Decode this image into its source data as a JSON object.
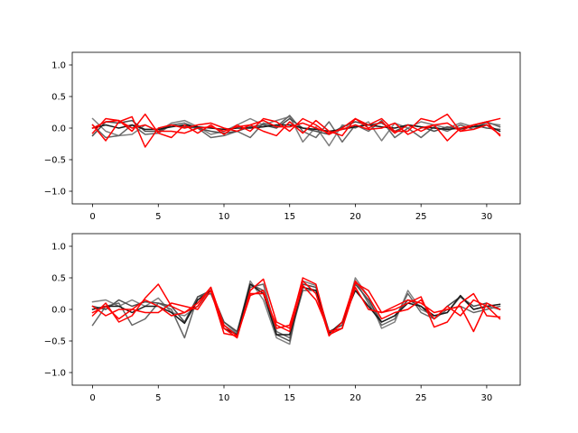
{
  "chart_data": [
    {
      "type": "line",
      "title": "",
      "xlabel": "",
      "ylabel": "",
      "xlim": [
        -1.55,
        32.55
      ],
      "ylim": [
        -1.2,
        1.2
      ],
      "xticks": [
        0,
        5,
        10,
        15,
        20,
        25,
        30
      ],
      "yticks": [
        -1.0,
        -0.5,
        0.0,
        0.5,
        1.0
      ],
      "xtick_labels": [
        "0",
        "5",
        "10",
        "15",
        "20",
        "25",
        "30"
      ],
      "ytick_labels": [
        "−1.0",
        "−0.5",
        "0.0",
        "0.5",
        "1.0"
      ],
      "grid": false,
      "legend": false,
      "x": [
        0,
        1,
        2,
        3,
        4,
        5,
        6,
        7,
        8,
        9,
        10,
        11,
        12,
        13,
        14,
        15,
        16,
        17,
        18,
        19,
        20,
        21,
        22,
        23,
        24,
        25,
        26,
        27,
        28,
        29,
        30,
        31
      ],
      "series": [
        {
          "color": "#7f7f7f",
          "values": [
            0.15,
            -0.05,
            -0.12,
            -0.1,
            0.05,
            -0.05,
            0.08,
            0.12,
            0.02,
            -0.1,
            -0.05,
            0.05,
            0.15,
            0.05,
            0.12,
            0.18,
            -0.22,
            0.02,
            -0.28,
            0.05,
            0.0,
            0.1,
            -0.2,
            0.08,
            0.0,
            0.1,
            0.05,
            0.0,
            0.08,
            0.02,
            0.08,
            0.05
          ]
        },
        {
          "color": "#666666",
          "values": [
            0.05,
            -0.15,
            -0.12,
            0.05,
            -0.1,
            -0.08,
            0.05,
            0.08,
            0.0,
            -0.15,
            -0.12,
            -0.05,
            -0.15,
            0.08,
            0.02,
            0.2,
            -0.05,
            -0.15,
            0.1,
            -0.22,
            0.05,
            -0.05,
            0.12,
            -0.15,
            0.0,
            -0.15,
            0.02,
            -0.05,
            0.05,
            -0.02,
            0.1,
            0.02
          ]
        },
        {
          "color": "#4d4d4d",
          "values": [
            -0.12,
            0.1,
            0.08,
            0.12,
            -0.05,
            -0.05,
            0.05,
            0.02,
            0.0,
            -0.05,
            -0.08,
            -0.05,
            0.02,
            0.05,
            0.0,
            0.15,
            0.0,
            -0.05,
            -0.1,
            0.02,
            0.1,
            0.05,
            0.08,
            -0.05,
            0.05,
            0.02,
            -0.05,
            0.02,
            -0.02,
            0.05,
            0.0,
            -0.02
          ]
        },
        {
          "color": "#1a1a1a",
          "values": [
            0.0,
            0.05,
            0.0,
            0.05,
            -0.02,
            -0.02,
            0.02,
            0.05,
            0.02,
            0.0,
            -0.02,
            0.0,
            0.0,
            0.02,
            0.05,
            0.05,
            0.0,
            -0.02,
            -0.05,
            -0.02,
            0.02,
            0.05,
            0.02,
            0.0,
            0.05,
            0.02,
            0.0,
            -0.02,
            0.0,
            0.02,
            0.05,
            -0.05
          ]
        },
        {
          "color": "#ff0000",
          "values": [
            -0.08,
            0.15,
            0.12,
            -0.05,
            0.22,
            -0.08,
            -0.15,
            0.05,
            -0.08,
            0.05,
            -0.1,
            0.05,
            -0.05,
            0.15,
            0.1,
            -0.05,
            0.15,
            0.05,
            -0.1,
            0.0,
            0.15,
            0.05,
            0.15,
            -0.05,
            -0.05,
            0.15,
            0.1,
            0.22,
            -0.05,
            0.05,
            0.1,
            0.15
          ]
        },
        {
          "color": "#ff0000",
          "values": [
            0.05,
            -0.2,
            0.1,
            0.18,
            -0.3,
            0.0,
            0.05,
            0.0,
            0.05,
            0.08,
            0.0,
            -0.05,
            0.05,
            -0.05,
            -0.12,
            0.1,
            -0.08,
            0.12,
            -0.05,
            -0.12,
            0.15,
            0.0,
            0.1,
            -0.08,
            0.05,
            -0.05,
            0.05,
            -0.2,
            0.0,
            0.05,
            0.1,
            -0.12
          ]
        },
        {
          "color": "#ff0000",
          "values": [
            0.0,
            0.1,
            0.12,
            0.0,
            0.05,
            -0.05,
            -0.05,
            -0.08,
            0.0,
            0.02,
            -0.05,
            0.02,
            0.05,
            0.12,
            0.02,
            0.02,
            0.08,
            0.0,
            -0.08,
            -0.02,
            0.05,
            -0.02,
            0.0,
            0.08,
            -0.1,
            0.0,
            0.05,
            0.08,
            -0.05,
            -0.02,
            0.05,
            -0.1
          ]
        }
      ]
    },
    {
      "type": "line",
      "title": "",
      "xlabel": "",
      "ylabel": "",
      "xlim": [
        -1.55,
        32.55
      ],
      "ylim": [
        -1.2,
        1.2
      ],
      "xticks": [
        0,
        5,
        10,
        15,
        20,
        25,
        30
      ],
      "yticks": [
        -1.0,
        -0.5,
        0.0,
        0.5,
        1.0
      ],
      "xtick_labels": [
        "0",
        "5",
        "10",
        "15",
        "20",
        "25",
        "30"
      ],
      "ytick_labels": [
        "−1.0",
        "−0.5",
        "0.0",
        "0.5",
        "1.0"
      ],
      "grid": false,
      "legend": false,
      "x": [
        0,
        1,
        2,
        3,
        4,
        5,
        6,
        7,
        8,
        9,
        10,
        11,
        12,
        13,
        14,
        15,
        16,
        17,
        18,
        19,
        20,
        21,
        22,
        23,
        24,
        25,
        26,
        27,
        28,
        29,
        30,
        31
      ],
      "series": [
        {
          "color": "#7f7f7f",
          "values": [
            0.12,
            0.15,
            0.05,
            0.15,
            0.05,
            0.18,
            -0.05,
            -0.1,
            0.05,
            0.3,
            -0.2,
            -0.38,
            0.45,
            0.15,
            -0.45,
            -0.55,
            0.45,
            0.38,
            -0.4,
            -0.3,
            0.5,
            0.2,
            -0.3,
            -0.2,
            0.3,
            0.0,
            -0.1,
            -0.05,
            0.2,
            0.0,
            0.05,
            0.0
          ]
        },
        {
          "color": "#666666",
          "values": [
            -0.25,
            0.05,
            0.1,
            -0.25,
            -0.15,
            0.1,
            0.0,
            -0.45,
            0.2,
            0.25,
            -0.25,
            -0.4,
            0.35,
            0.4,
            -0.35,
            -0.45,
            0.3,
            0.3,
            -0.35,
            -0.25,
            0.45,
            0.1,
            -0.25,
            -0.15,
            0.25,
            -0.05,
            -0.15,
            0.0,
            0.05,
            -0.05,
            0.0,
            0.05
          ]
        },
        {
          "color": "#4d4d4d",
          "values": [
            0.05,
            0.0,
            0.15,
            0.05,
            0.12,
            0.1,
            0.05,
            -0.2,
            0.2,
            0.3,
            -0.2,
            -0.35,
            0.4,
            0.3,
            -0.4,
            -0.5,
            0.4,
            0.35,
            -0.35,
            -0.25,
            0.4,
            0.15,
            -0.2,
            -0.1,
            0.15,
            0.05,
            -0.15,
            0.05,
            0.2,
            0.05,
            0.1,
            0.0
          ]
        },
        {
          "color": "#1a1a1a",
          "values": [
            0.0,
            0.05,
            0.05,
            -0.05,
            0.05,
            0.05,
            -0.05,
            -0.22,
            0.15,
            0.3,
            -0.3,
            -0.4,
            0.4,
            0.25,
            -0.4,
            -0.4,
            0.35,
            0.3,
            -0.38,
            -0.2,
            0.3,
            0.05,
            -0.2,
            -0.1,
            0.1,
            0.05,
            -0.1,
            -0.05,
            0.22,
            0.0,
            0.05,
            0.08
          ]
        },
        {
          "color": "#ff0000",
          "values": [
            -0.1,
            0.1,
            -0.2,
            -0.1,
            0.18,
            0.4,
            0.05,
            -0.05,
            0.05,
            0.35,
            -0.3,
            -0.45,
            0.3,
            0.48,
            -0.2,
            -0.3,
            0.5,
            0.4,
            -0.4,
            -0.3,
            0.42,
            0.3,
            -0.05,
            0.0,
            0.1,
            0.2,
            -0.28,
            -0.2,
            0.1,
            0.25,
            -0.1,
            -0.12
          ]
        },
        {
          "color": "#ff0000",
          "values": [
            0.05,
            -0.1,
            0.0,
            0.0,
            0.15,
            0.05,
            -0.1,
            -0.05,
            0.1,
            0.35,
            -0.25,
            -0.42,
            0.22,
            0.3,
            -0.3,
            -0.25,
            0.45,
            0.25,
            -0.42,
            -0.2,
            0.45,
            0.2,
            -0.15,
            -0.05,
            0.0,
            0.15,
            -0.15,
            0.05,
            -0.1,
            0.15,
            0.05,
            -0.15
          ]
        },
        {
          "color": "#ff0000",
          "values": [
            -0.05,
            0.05,
            -0.15,
            0.0,
            -0.05,
            -0.05,
            0.1,
            0.05,
            0.0,
            0.3,
            -0.38,
            -0.42,
            0.25,
            0.25,
            -0.25,
            -0.35,
            0.38,
            0.15,
            -0.35,
            -0.3,
            0.35,
            0.0,
            -0.05,
            0.05,
            0.15,
            0.1,
            -0.05,
            0.0,
            0.05,
            -0.35,
            0.1,
            0.0
          ]
        }
      ]
    }
  ]
}
